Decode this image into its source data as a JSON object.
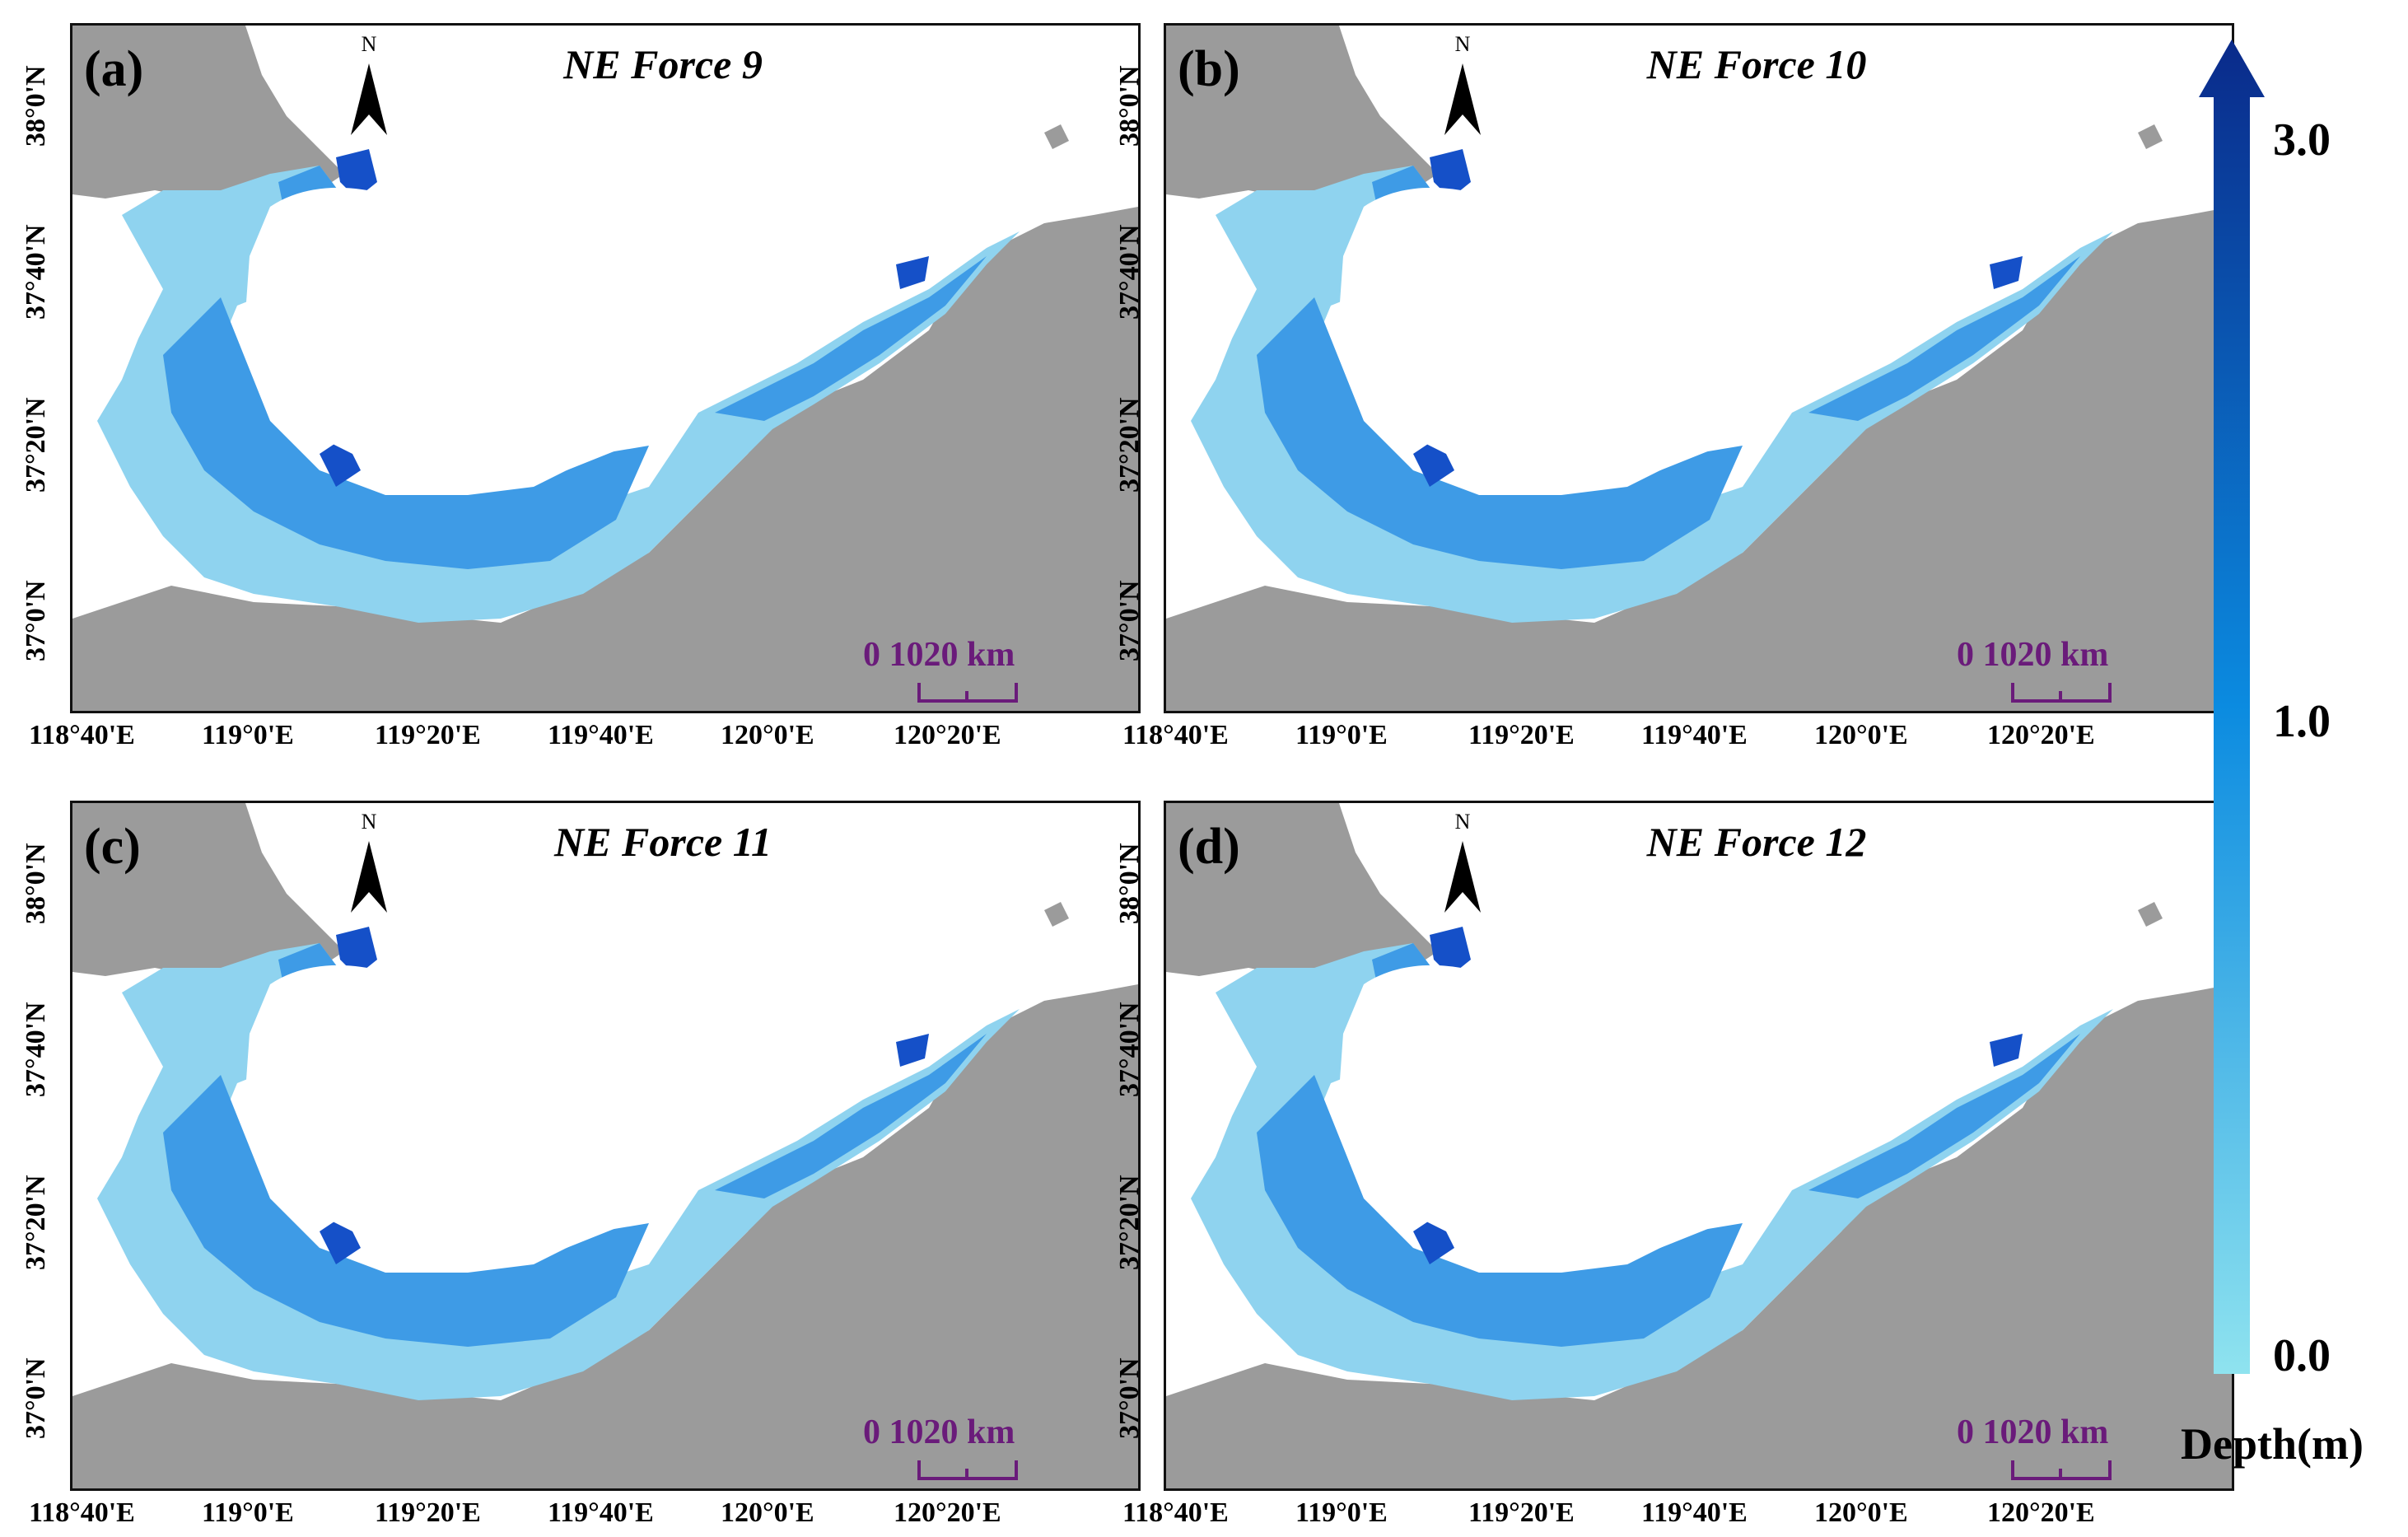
{
  "panels": [
    {
      "label": "(a)",
      "title": "NE Force 9"
    },
    {
      "label": "(b)",
      "title": "NE Force 10"
    },
    {
      "label": "(c)",
      "title": "NE Force 11"
    },
    {
      "label": "(d)",
      "title": "NE Force 12"
    }
  ],
  "north_arrow": {
    "label": "N",
    "icon": "north-arrow-icon"
  },
  "scale_bar": {
    "text": "0 1020 km"
  },
  "lat_labels": [
    "38°0'N",
    "37°40'N",
    "37°20'N",
    "37°0'N"
  ],
  "lon_labels": [
    "118°40'E",
    "119°0'E",
    "119°20'E",
    "119°40'E",
    "120°0'E",
    "120°20'E"
  ],
  "colorbar": {
    "title": "Depth(m)",
    "ticks": [
      "3.0",
      "1.0",
      "0.0"
    ],
    "colors": [
      "#8fe3ef",
      "#0b8be0",
      "#0a2a8a"
    ]
  },
  "colors": {
    "land": "#9b9b9b",
    "sea": "#ffffff",
    "shallow": "#8fd3ef",
    "mid": "#3e9be6",
    "deep": "#1550c8"
  }
}
